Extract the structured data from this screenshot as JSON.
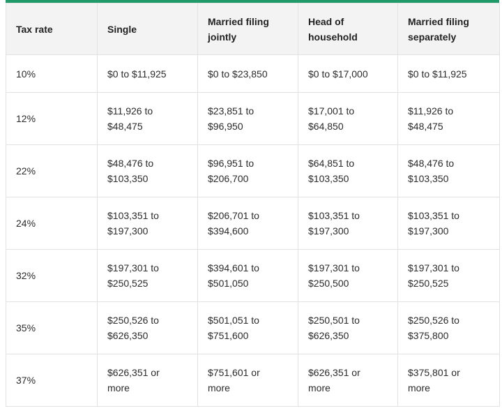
{
  "table": {
    "header": [
      "Tax rate",
      "Single",
      "Married filing jointly",
      "Head of household",
      "Married filing separately"
    ],
    "rows": [
      [
        "10%",
        "$0 to $11,925",
        "$0 to $23,850",
        "$0 to $17,000",
        "$0 to $11,925"
      ],
      [
        "12%",
        "$11,926 to $48,475",
        "$23,851 to $96,950",
        "$17,001 to $64,850",
        "$11,926 to $48,475"
      ],
      [
        "22%",
        "$48,476 to $103,350",
        "$96,951 to $206,700",
        "$64,851 to $103,350",
        "$48,476 to $103,350"
      ],
      [
        "24%",
        "$103,351 to $197,300",
        "$206,701 to $394,600",
        "$103,351 to $197,300",
        "$103,351 to $197,300"
      ],
      [
        "32%",
        "$197,301 to $250,525",
        "$394,601 to $501,050",
        "$197,301 to $250,500",
        "$197,301 to $250,525"
      ],
      [
        "35%",
        "$250,526 to $626,350",
        "$501,051 to $751,600",
        "$250,501 to $626,350",
        "$250,526 to $375,800"
      ],
      [
        "37%",
        "$626,351 or more",
        "$751,601 or more",
        "$626,351 or more",
        "$375,801 or more"
      ]
    ]
  }
}
